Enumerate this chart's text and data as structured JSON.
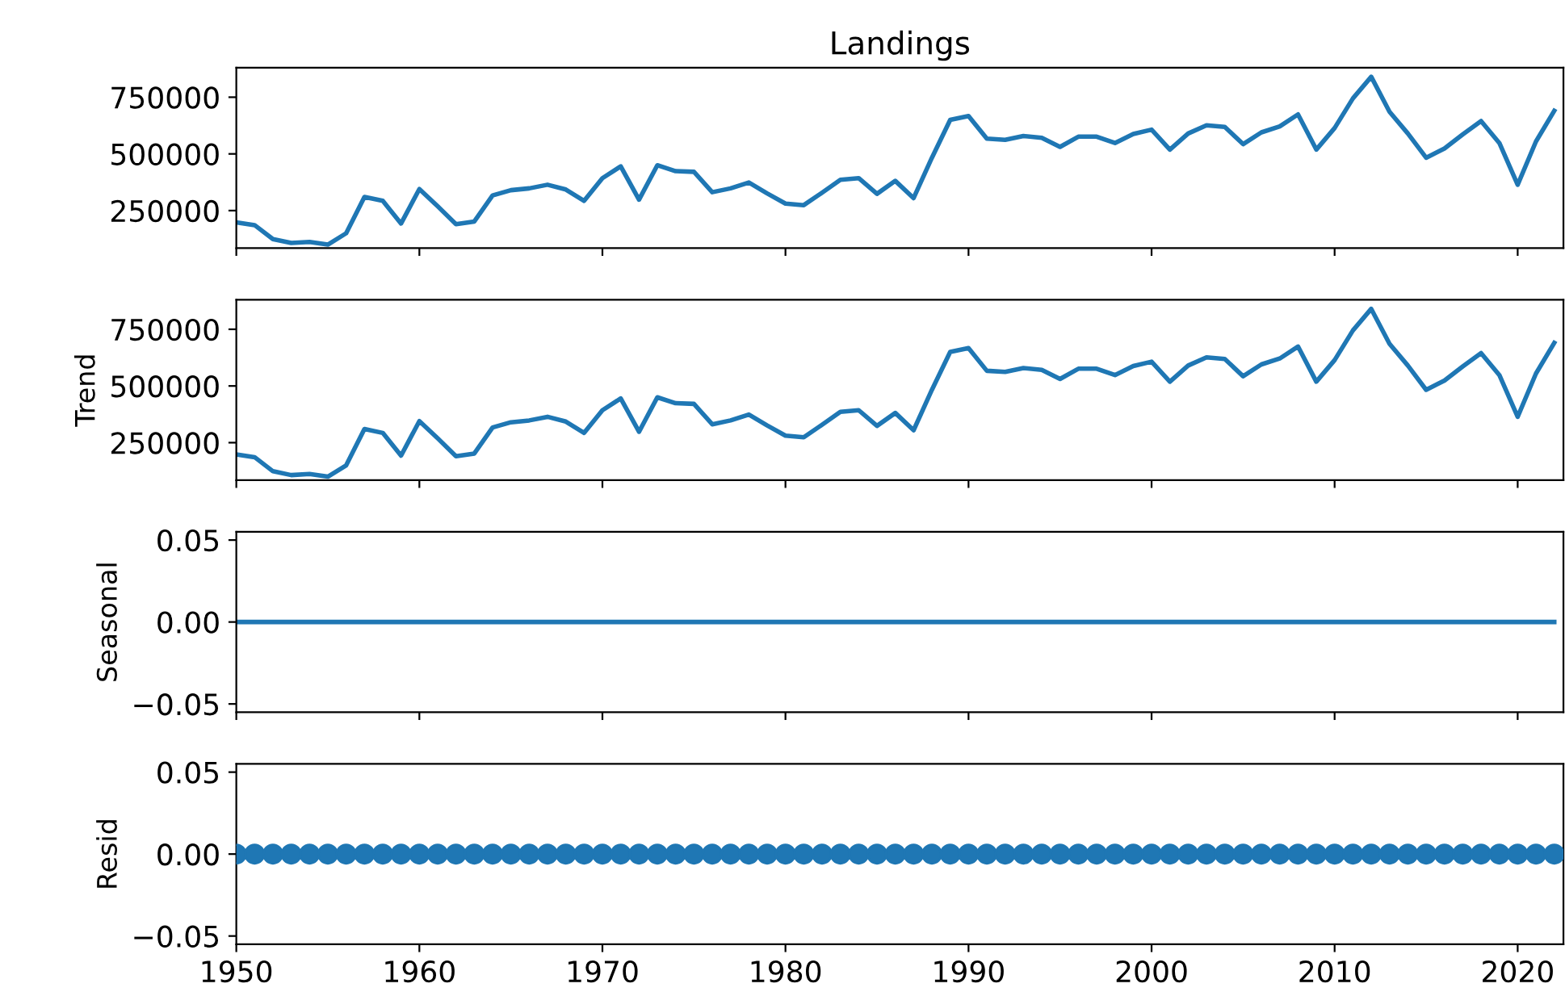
{
  "chart_data": [
    {
      "type": "line",
      "title": "Landings",
      "x": [
        1950,
        1951,
        1952,
        1953,
        1954,
        1955,
        1956,
        1957,
        1958,
        1959,
        1960,
        1961,
        1962,
        1963,
        1964,
        1965,
        1966,
        1967,
        1968,
        1969,
        1970,
        1971,
        1972,
        1973,
        1974,
        1975,
        1976,
        1977,
        1978,
        1979,
        1980,
        1981,
        1982,
        1983,
        1984,
        1985,
        1986,
        1987,
        1988,
        1989,
        1990,
        1991,
        1992,
        1993,
        1994,
        1995,
        1996,
        1997,
        1998,
        1999,
        2000,
        2001,
        2002,
        2003,
        2004,
        2005,
        2006,
        2007,
        2008,
        2009,
        2010,
        2011,
        2012,
        2013,
        2014,
        2015,
        2016,
        2017,
        2018,
        2019,
        2020,
        2021,
        2022
      ],
      "series": [
        {
          "color": "#1f77b4",
          "values": [
            198000,
            186000,
            124000,
            107000,
            112000,
            100000,
            150000,
            310000,
            293000,
            193000,
            345000,
            269000,
            190000,
            202000,
            317000,
            340000,
            348000,
            364000,
            343000,
            293000,
            393000,
            445000,
            298000,
            450000,
            424000,
            421000,
            331000,
            348000,
            374000,
            326000,
            281000,
            274000,
            329000,
            386000,
            393000,
            324000,
            381000,
            305000,
            483000,
            650000,
            667000,
            567000,
            562000,
            579000,
            571000,
            531000,
            576000,
            576000,
            548000,
            588000,
            607000,
            519000,
            590000,
            626000,
            619000,
            543000,
            595000,
            621000,
            674000,
            519000,
            614000,
            745000,
            840000,
            686000,
            590000,
            483000,
            524000,
            586000,
            645000,
            548000,
            364000,
            555000,
            690000
          ]
        }
      ],
      "xlim": [
        1950,
        2022.5
      ],
      "ylim": [
        85000,
        880000
      ],
      "yticks": [
        250000,
        500000,
        750000
      ],
      "tick_labels": "y",
      "grid": false
    },
    {
      "type": "line",
      "ylabel": "Trend",
      "x": [
        1950,
        1951,
        1952,
        1953,
        1954,
        1955,
        1956,
        1957,
        1958,
        1959,
        1960,
        1961,
        1962,
        1963,
        1964,
        1965,
        1966,
        1967,
        1968,
        1969,
        1970,
        1971,
        1972,
        1973,
        1974,
        1975,
        1976,
        1977,
        1978,
        1979,
        1980,
        1981,
        1982,
        1983,
        1984,
        1985,
        1986,
        1987,
        1988,
        1989,
        1990,
        1991,
        1992,
        1993,
        1994,
        1995,
        1996,
        1997,
        1998,
        1999,
        2000,
        2001,
        2002,
        2003,
        2004,
        2005,
        2006,
        2007,
        2008,
        2009,
        2010,
        2011,
        2012,
        2013,
        2014,
        2015,
        2016,
        2017,
        2018,
        2019,
        2020,
        2021,
        2022
      ],
      "series": [
        {
          "color": "#1f77b4",
          "values": [
            198000,
            186000,
            124000,
            107000,
            112000,
            100000,
            150000,
            310000,
            293000,
            193000,
            345000,
            269000,
            190000,
            202000,
            317000,
            340000,
            348000,
            364000,
            343000,
            293000,
            393000,
            445000,
            298000,
            450000,
            424000,
            421000,
            331000,
            348000,
            374000,
            326000,
            281000,
            274000,
            329000,
            386000,
            393000,
            324000,
            381000,
            305000,
            483000,
            650000,
            667000,
            567000,
            562000,
            579000,
            571000,
            531000,
            576000,
            576000,
            548000,
            588000,
            607000,
            519000,
            590000,
            626000,
            619000,
            543000,
            595000,
            621000,
            674000,
            519000,
            614000,
            745000,
            840000,
            686000,
            590000,
            483000,
            524000,
            586000,
            645000,
            548000,
            364000,
            555000,
            690000
          ]
        }
      ],
      "xlim": [
        1950,
        2022.5
      ],
      "ylim": [
        85000,
        880000
      ],
      "yticks": [
        250000,
        500000,
        750000
      ],
      "tick_labels": "y",
      "grid": false
    },
    {
      "type": "line",
      "ylabel": "Seasonal",
      "x": [
        1950,
        1951,
        1952,
        1953,
        1954,
        1955,
        1956,
        1957,
        1958,
        1959,
        1960,
        1961,
        1962,
        1963,
        1964,
        1965,
        1966,
        1967,
        1968,
        1969,
        1970,
        1971,
        1972,
        1973,
        1974,
        1975,
        1976,
        1977,
        1978,
        1979,
        1980,
        1981,
        1982,
        1983,
        1984,
        1985,
        1986,
        1987,
        1988,
        1989,
        1990,
        1991,
        1992,
        1993,
        1994,
        1995,
        1996,
        1997,
        1998,
        1999,
        2000,
        2001,
        2002,
        2003,
        2004,
        2005,
        2006,
        2007,
        2008,
        2009,
        2010,
        2011,
        2012,
        2013,
        2014,
        2015,
        2016,
        2017,
        2018,
        2019,
        2020,
        2021,
        2022
      ],
      "series": [
        {
          "color": "#1f77b4",
          "values": [
            0,
            0,
            0,
            0,
            0,
            0,
            0,
            0,
            0,
            0,
            0,
            0,
            0,
            0,
            0,
            0,
            0,
            0,
            0,
            0,
            0,
            0,
            0,
            0,
            0,
            0,
            0,
            0,
            0,
            0,
            0,
            0,
            0,
            0,
            0,
            0,
            0,
            0,
            0,
            0,
            0,
            0,
            0,
            0,
            0,
            0,
            0,
            0,
            0,
            0,
            0,
            0,
            0,
            0,
            0,
            0,
            0,
            0,
            0,
            0,
            0,
            0,
            0,
            0,
            0,
            0,
            0,
            0,
            0,
            0,
            0,
            0,
            0
          ]
        }
      ],
      "xlim": [
        1950,
        2022.5
      ],
      "ylim": [
        -0.055,
        0.055
      ],
      "yticks": [
        {
          "value": -0.05,
          "label": "−0.05"
        },
        {
          "value": 0,
          "label": "0.00"
        },
        {
          "value": 0.05,
          "label": "0.05"
        }
      ],
      "tick_labels": "y",
      "grid": false
    },
    {
      "type": "scatter",
      "ylabel": "Resid",
      "marker": "circle",
      "x": [
        1950,
        1951,
        1952,
        1953,
        1954,
        1955,
        1956,
        1957,
        1958,
        1959,
        1960,
        1961,
        1962,
        1963,
        1964,
        1965,
        1966,
        1967,
        1968,
        1969,
        1970,
        1971,
        1972,
        1973,
        1974,
        1975,
        1976,
        1977,
        1978,
        1979,
        1980,
        1981,
        1982,
        1983,
        1984,
        1985,
        1986,
        1987,
        1988,
        1989,
        1990,
        1991,
        1992,
        1993,
        1994,
        1995,
        1996,
        1997,
        1998,
        1999,
        2000,
        2001,
        2002,
        2003,
        2004,
        2005,
        2006,
        2007,
        2008,
        2009,
        2010,
        2011,
        2012,
        2013,
        2014,
        2015,
        2016,
        2017,
        2018,
        2019,
        2020,
        2021,
        2022
      ],
      "series": [
        {
          "color": "#1f77b4",
          "values": [
            0,
            0,
            0,
            0,
            0,
            0,
            0,
            0,
            0,
            0,
            0,
            0,
            0,
            0,
            0,
            0,
            0,
            0,
            0,
            0,
            0,
            0,
            0,
            0,
            0,
            0,
            0,
            0,
            0,
            0,
            0,
            0,
            0,
            0,
            0,
            0,
            0,
            0,
            0,
            0,
            0,
            0,
            0,
            0,
            0,
            0,
            0,
            0,
            0,
            0,
            0,
            0,
            0,
            0,
            0,
            0,
            0,
            0,
            0,
            0,
            0,
            0,
            0,
            0,
            0,
            0,
            0,
            0,
            0,
            0,
            0,
            0,
            0
          ]
        }
      ],
      "xlim": [
        1950,
        2022.5
      ],
      "ylim": [
        -0.055,
        0.055
      ],
      "yticks": [
        {
          "value": -0.05,
          "label": "−0.05"
        },
        {
          "value": 0,
          "label": "0.00"
        },
        {
          "value": 0.05,
          "label": "0.05"
        }
      ],
      "xticks": [
        1950,
        1960,
        1970,
        1980,
        1990,
        2000,
        2010,
        2020
      ],
      "grid": false
    }
  ]
}
